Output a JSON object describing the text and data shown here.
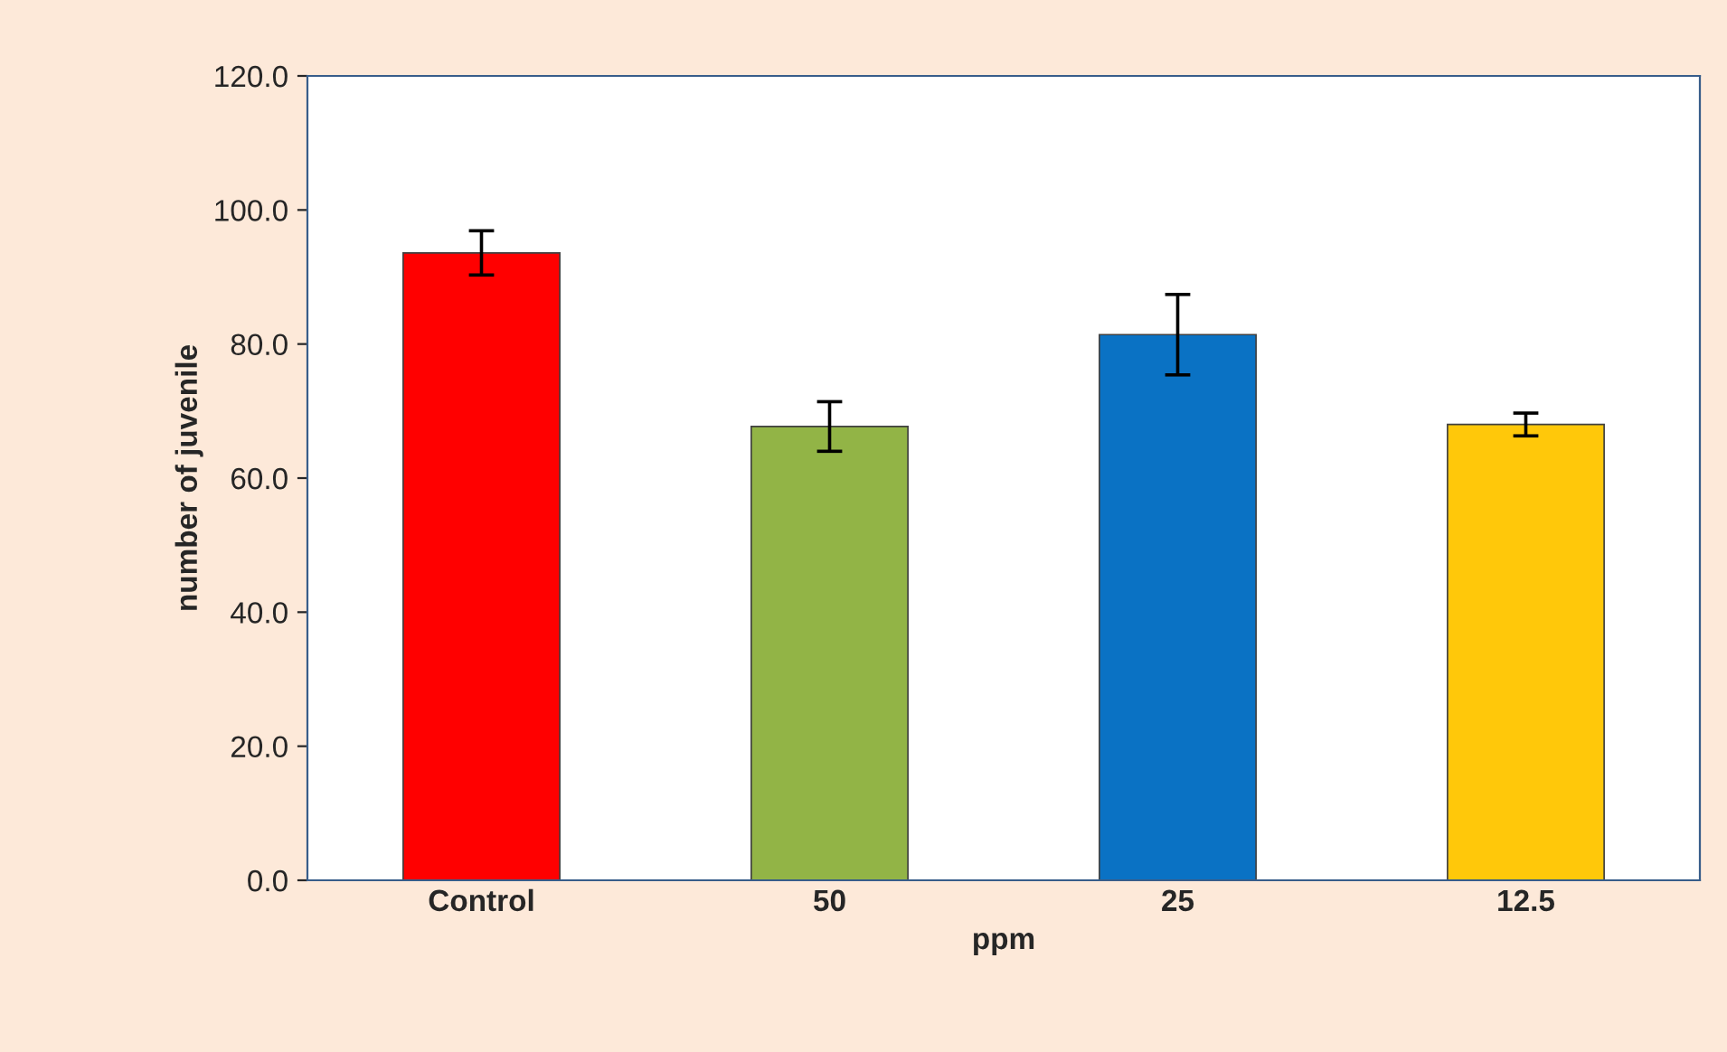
{
  "chart_data": {
    "type": "bar",
    "xlabel": "ppm",
    "ylabel": "number of juvenile",
    "categories": [
      "Control",
      "50",
      "25",
      "12.5"
    ],
    "values": [
      93.6,
      67.7,
      81.4,
      68.0
    ],
    "errors": [
      3.3,
      3.7,
      6.0,
      1.7
    ],
    "colors": [
      "#ff0000",
      "#92b446",
      "#0a72c4",
      "#ffc80a"
    ],
    "ylim": [
      0,
      120
    ],
    "yticks": [
      {
        "value": 0,
        "label": "0.0"
      },
      {
        "value": 20,
        "label": "20.0"
      },
      {
        "value": 40,
        "label": "40.0"
      },
      {
        "value": 60,
        "label": "60.0"
      },
      {
        "value": 80,
        "label": "80.0"
      },
      {
        "value": 100,
        "label": "100.0"
      },
      {
        "value": 120,
        "label": "120.0"
      }
    ],
    "grid": false,
    "legend": false
  }
}
